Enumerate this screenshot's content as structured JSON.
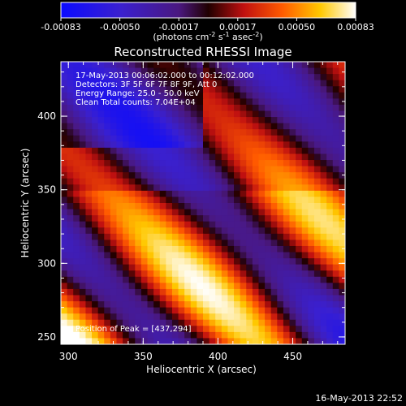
{
  "colorbar": {
    "ticks": [
      "-0.00083",
      "-0.00050",
      "-0.00017",
      "0.00017",
      "0.00050",
      "0.00083"
    ],
    "unit_main": "(photons cm",
    "unit_exp1": "-2",
    "unit_mid": " s",
    "unit_exp2": "-1",
    "unit_end": " asec",
    "unit_exp3": "-2",
    "unit_close": ")",
    "min": -0.00083,
    "max": 0.00083
  },
  "plot": {
    "title": "Reconstructed RHESSI Image",
    "info_lines": [
      "17-May-2013 00:06:02.000 to 00:12:02.000",
      "Detectors: 3F 5F 6F 7F 8F 9F, Att 0",
      "Energy Range: 25.0 - 50.0 keV",
      "Clean     Total counts: 7.04E+04"
    ],
    "peak_text": "Position of Peak = [437,294]",
    "footer_date": "16-May-2013 22:52"
  },
  "chart_data": {
    "type": "heatmap",
    "title": "Reconstructed RHESSI Image",
    "xlabel": "Heliocentric X (arcsec)",
    "ylabel": "Heliocentric Y (arcsec)",
    "xlim": [
      295,
      485
    ],
    "ylim": [
      245,
      437
    ],
    "x_ticks": [
      300,
      350,
      400,
      450
    ],
    "y_ticks": [
      250,
      300,
      350,
      400
    ],
    "x_tick_labels": [
      "300",
      "350",
      "400",
      "450"
    ],
    "y_tick_labels": [
      "250",
      "300",
      "350",
      "400"
    ],
    "peak": [
      437,
      294
    ],
    "colormap": "blue-purple-red-yellow-white"
  }
}
